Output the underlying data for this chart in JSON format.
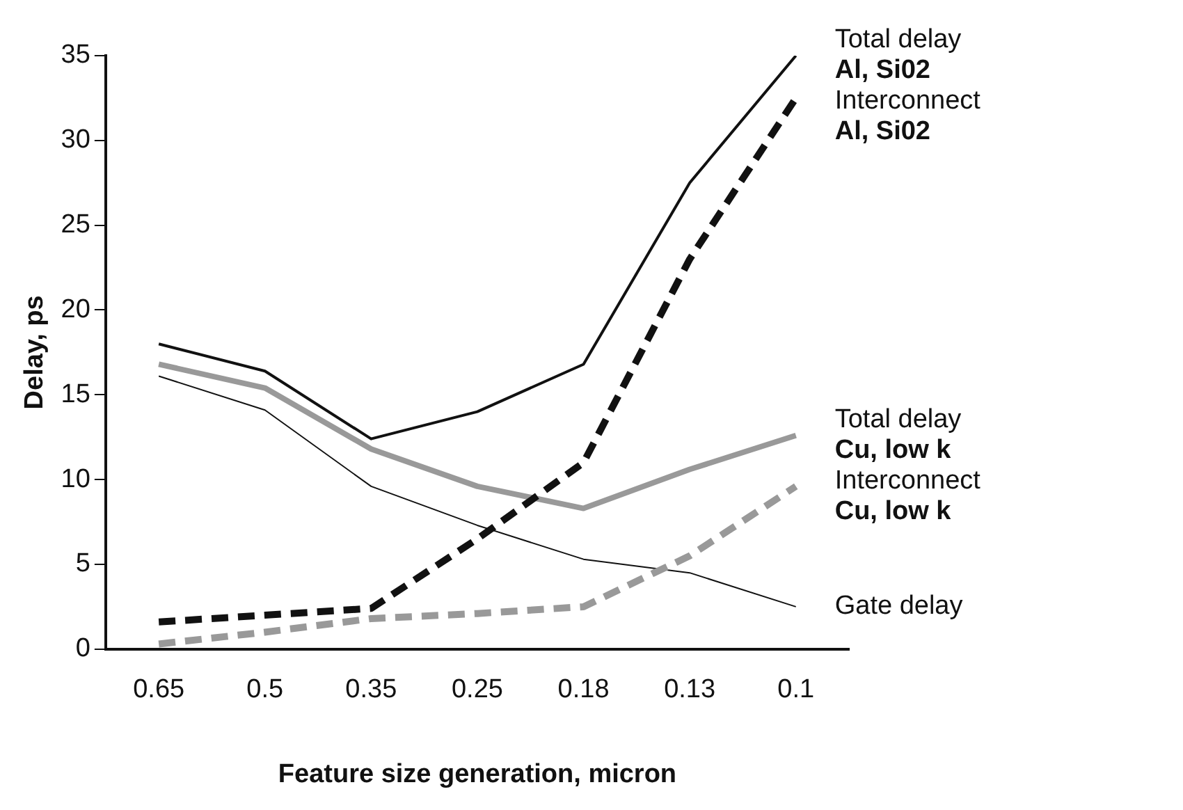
{
  "chart_data": {
    "type": "line",
    "xlabel": "Feature size generation, micron",
    "ylabel": "Delay, ps",
    "categories": [
      "0.65",
      "0.5",
      "0.35",
      "0.25",
      "0.18",
      "0.13",
      "0.1"
    ],
    "ylim": [
      0,
      35
    ],
    "yticks": [
      0,
      5,
      10,
      15,
      20,
      25,
      30,
      35
    ],
    "grid": false,
    "legend": false,
    "marker": "none",
    "series": [
      {
        "name": "Total delay\nAl, Si02",
        "color": "#111111",
        "line_style": "solid",
        "values": [
          18,
          16.4,
          12.4,
          14,
          16.8,
          27.5,
          35
        ]
      },
      {
        "name": "Interconnect\nAl, Si02",
        "color": "#111111",
        "line_style": "dashed",
        "values": [
          1.6,
          2.0,
          2.4,
          6.5,
          11,
          23,
          32.5
        ]
      },
      {
        "name": "Total delay\nCu, low k",
        "color": "#999999",
        "line_style": "solid",
        "values": [
          16.8,
          15.4,
          11.8,
          9.6,
          8.3,
          10.6,
          12.6
        ]
      },
      {
        "name": "Interconnect\nCu, low k",
        "color": "#999999",
        "line_style": "dashed",
        "values": [
          0.3,
          1.0,
          1.8,
          2.1,
          2.5,
          5.5,
          9.6
        ]
      },
      {
        "name": "Gate delay",
        "color": "#111111",
        "line_style": "solid",
        "values": [
          16.1,
          14.1,
          9.6,
          7.3,
          5.3,
          4.5,
          2.5
        ]
      }
    ]
  }
}
